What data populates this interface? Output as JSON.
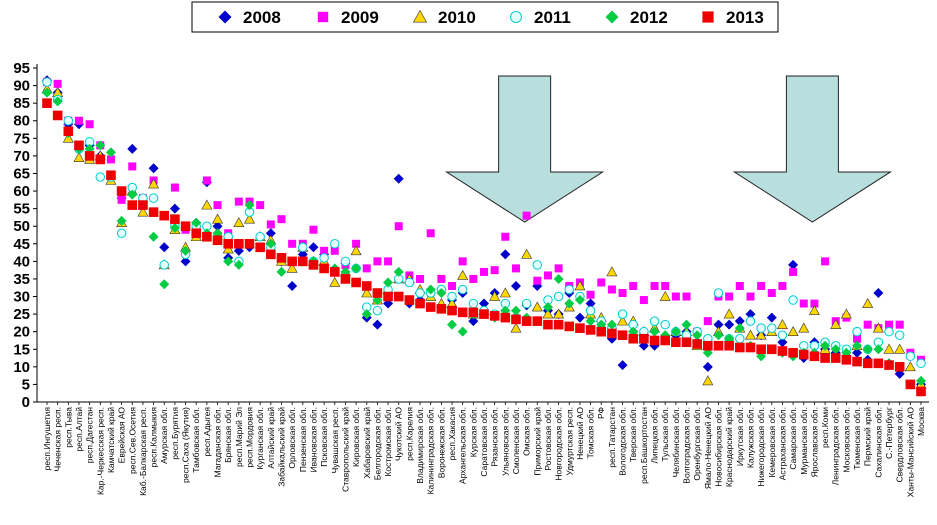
{
  "chart_data": {
    "type": "scatter",
    "ylim": [
      0,
      95
    ],
    "yticks": [
      0,
      5,
      10,
      15,
      20,
      25,
      30,
      35,
      40,
      45,
      50,
      55,
      60,
      65,
      70,
      75,
      80,
      85,
      90,
      95
    ],
    "grid": false,
    "legend_position": "top",
    "categories": [
      "респ.Ингушетия",
      "Чеченская респ.",
      "респ.Тыва",
      "респ.Алтай",
      "респ.Дагестан",
      "Кар.-Черкесская респ.",
      "Камчатский край",
      "Еврейская АО",
      "респ.Сев.Осетия",
      "Каб.-Балкарская респ.",
      "респ.Калмыкия",
      "Амурская обл.",
      "респ.Бурятия",
      "респ.Саха (Якутия)",
      "Тамбовская обл.",
      "респ.Адыгея",
      "Магаданская обл.",
      "Брянская обл.",
      "респ.Марий Эл",
      "респ.Мордовия",
      "Курганская обл.",
      "Алтайский край",
      "Забайкальский край",
      "Орловская обл.",
      "Пензенская обл.",
      "Ивановская обл.",
      "Псковская обл.",
      "Чувашская респ.",
      "Ставропольский край",
      "Кировская обл.",
      "Хабаровский край",
      "Белгородская обл.",
      "Костромская обл.",
      "Чукотский АО",
      "респ.Карелия",
      "Владимирская обл.",
      "Калининградская обл.",
      "Воронежская обл.",
      "респ.Хакасия",
      "Архангельская обл.",
      "Курская обл.",
      "Саратовская обл.",
      "Рязанская обл.",
      "Ульяновская обл.",
      "Смоленская обл.",
      "Омская обл.",
      "Приморский край",
      "Ростовская обл.",
      "Новгородская обл.",
      "Удмуртская респ.",
      "Ненецкий АО",
      "Томская обл.",
      "РФ",
      "респ.Татарстан",
      "Вологодская обл.",
      "Тверская обл.",
      "респ.Башкортостан",
      "Липецкая обл.",
      "Тульская обл.",
      "Челябинская обл.",
      "Волгоградская обл.",
      "Оренбургская обл.",
      "Ямало-Ненецкий АО",
      "Новосибирская обл.",
      "Краснодарский край",
      "Иркутская обл.",
      "Калужская обл.",
      "Нижегородская обл.",
      "Кемеровская обл.",
      "Астраханская обл.",
      "Самарская обл.",
      "Мурманская обл.",
      "Ярославская обл.",
      "респ.Коми",
      "Ленинградская обл.",
      "Московская обл.",
      "Тюменская обл.",
      "Пермский край",
      "Сахалинская обл.",
      "С.-Петербург",
      "Свердловская обл.",
      "Ханты-Мансийский АО",
      "Москва"
    ],
    "series": [
      {
        "name": "2008",
        "color": "#0000cc",
        "marker": "diamond",
        "values": [
          91.5,
          88,
          79,
          79,
          73,
          70,
          64,
          58,
          72,
          57,
          66.5,
          44,
          55,
          40,
          51,
          62.5,
          50,
          41,
          43,
          44,
          44,
          48,
          40,
          33,
          42,
          44,
          42,
          37,
          39.5,
          38,
          24,
          22,
          28,
          63.5,
          28,
          29,
          31,
          32,
          29,
          31,
          23,
          28,
          31,
          42,
          33,
          27.5,
          33,
          26,
          25,
          31,
          24,
          28,
          21,
          18,
          10.5,
          20,
          16,
          16,
          18,
          19,
          20,
          17,
          10,
          22,
          22,
          23,
          25,
          19,
          24,
          17,
          39,
          12.5,
          17,
          15,
          14,
          13,
          14,
          12,
          31,
          11,
          8,
          5,
          5
        ]
      },
      {
        "name": "2009",
        "color": "#ff00ff",
        "marker": "square",
        "values": [
          91,
          90.5,
          80,
          80,
          79,
          73,
          69,
          57.5,
          67,
          58,
          63,
          53,
          61,
          49,
          49,
          63,
          56,
          48,
          57,
          57,
          56,
          50.5,
          52,
          45,
          45,
          49,
          43,
          43,
          39,
          45,
          38,
          40,
          40,
          50,
          36,
          35,
          48,
          35,
          33,
          40,
          35,
          37,
          37.5,
          47,
          38,
          53,
          34.5,
          36,
          38,
          33,
          34,
          30.5,
          34,
          32,
          31,
          33,
          29,
          33,
          33,
          30,
          30,
          20,
          23,
          30,
          30,
          33,
          30,
          33,
          31,
          33,
          37,
          28,
          28,
          40,
          23,
          24,
          18,
          22,
          21,
          22,
          22,
          14,
          12
        ]
      },
      {
        "name": "2010",
        "color": "#ffd700",
        "marker": "triangle",
        "values": [
          89,
          88,
          75,
          69.5,
          69,
          70,
          63,
          51,
          60,
          54,
          62,
          39,
          49,
          44,
          47,
          56,
          52,
          43.5,
          51,
          52,
          47,
          46,
          40,
          38,
          44,
          40,
          40,
          34,
          37,
          43,
          31,
          29,
          32,
          35,
          35,
          32,
          30,
          28,
          28,
          36,
          25,
          26,
          30,
          31,
          21,
          42,
          27,
          25,
          25,
          27,
          33,
          25,
          24,
          37,
          23,
          23,
          20,
          21,
          30,
          20,
          20,
          16,
          6,
          20,
          25,
          21,
          19,
          19,
          20,
          22,
          20,
          21,
          26,
          15,
          22,
          25,
          16,
          28,
          21,
          15,
          15,
          10,
          5
        ]
      },
      {
        "name": "2011",
        "color": "#00cccc",
        "marker": "circle",
        "values": [
          91,
          86,
          80,
          72,
          74,
          64,
          64,
          48,
          61,
          58,
          58,
          39,
          50,
          42,
          50,
          50,
          47,
          47,
          40,
          54,
          47,
          44,
          41,
          40,
          44,
          40,
          41,
          45,
          40,
          38,
          27,
          26,
          32,
          35,
          34,
          31,
          31,
          32,
          30,
          32,
          28,
          26,
          25,
          28,
          24,
          28,
          39,
          29,
          30,
          32,
          30,
          26,
          23,
          21,
          25,
          22,
          20,
          23,
          22,
          20,
          19,
          20,
          18,
          31,
          18,
          18,
          23,
          21,
          21,
          19,
          29,
          16,
          16,
          17,
          16,
          15,
          20,
          15,
          17,
          20,
          19,
          13,
          11
        ]
      },
      {
        "name": "2012",
        "color": "#00cc44",
        "marker": "diamond",
        "values": [
          88,
          85.5,
          76.5,
          72,
          72,
          73,
          71,
          51.5,
          59,
          56,
          47,
          33.5,
          49.5,
          43,
          51,
          48,
          48,
          40,
          39,
          56,
          44,
          45,
          37,
          40,
          40,
          40,
          38,
          38,
          37,
          38,
          25,
          29,
          34,
          37,
          29,
          28,
          32,
          31,
          22,
          20,
          25,
          25,
          24,
          26,
          26,
          24,
          23,
          27,
          35,
          28,
          29,
          23,
          22,
          22,
          19,
          20,
          18,
          20,
          19,
          20,
          22,
          19,
          14,
          19,
          18,
          21,
          16,
          13,
          15,
          14,
          13,
          14,
          14,
          16,
          15,
          14,
          16,
          15,
          15,
          11,
          10,
          5,
          6
        ]
      },
      {
        "name": "2013",
        "color": "#ee0000",
        "marker": "square",
        "values": [
          85,
          81.5,
          77,
          73,
          70,
          69,
          64.5,
          60,
          56,
          56,
          54,
          53,
          52,
          50,
          48,
          47,
          46,
          45,
          45,
          45,
          44,
          42,
          41,
          40,
          40,
          39,
          38,
          37,
          35,
          34,
          33,
          31,
          30,
          30,
          29,
          28,
          27,
          26.5,
          26,
          25.5,
          25.5,
          25,
          24.5,
          24,
          23.5,
          23,
          23,
          22,
          22,
          21.5,
          21,
          20.5,
          20,
          19.5,
          19,
          18,
          18,
          17.5,
          17.5,
          17,
          17,
          16.5,
          16,
          16,
          16,
          15.5,
          15.5,
          15,
          15,
          14.5,
          14,
          13.5,
          13,
          12.5,
          12.5,
          12,
          11.5,
          11,
          11,
          10.5,
          10,
          5,
          3
        ]
      }
    ],
    "arrows": [
      {
        "category_index": 45
      },
      {
        "category_index": 72
      }
    ]
  }
}
